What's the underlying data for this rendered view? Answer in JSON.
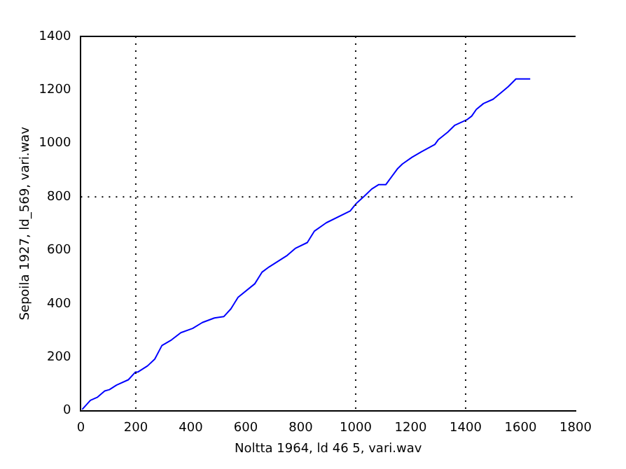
{
  "chart_data": {
    "type": "line",
    "xlabel": "Noltta 1964, ld 46 5, vari.wav",
    "ylabel": "Sepoila 1927, ld_569, vari.wav",
    "x": [
      5,
      35,
      61,
      87,
      104,
      130,
      173,
      199,
      208,
      243,
      269,
      295,
      330,
      364,
      407,
      442,
      486,
      520,
      546,
      572,
      633,
      659,
      685,
      728,
      751,
      780,
      824,
      850,
      893,
      980,
      1001,
      1032,
      1058,
      1084,
      1110,
      1122,
      1153,
      1170,
      1205,
      1240,
      1288,
      1300,
      1335,
      1361,
      1404,
      1422,
      1439,
      1465,
      1500,
      1540,
      1555,
      1583,
      1635
    ],
    "series": [
      {
        "color": "#0000ff",
        "values": [
          5,
          39,
          51,
          74,
          79,
          96,
          116,
          145,
          145,
          168,
          193,
          244,
          265,
          292,
          308,
          330,
          347,
          352,
          381,
          424,
          475,
          518,
          538,
          566,
          581,
          607,
          629,
          672,
          703,
          747,
          774,
          803,
          829,
          846,
          846,
          863,
          906,
          923,
          948,
          969,
          996,
          1013,
          1042,
          1068,
          1088,
          1102,
          1127,
          1149,
          1165,
          1199,
          1212,
          1241,
          1241
        ]
      }
    ],
    "xlim": [
      0,
      1800
    ],
    "xticks": [
      0,
      200,
      400,
      600,
      800,
      1000,
      1200,
      1400,
      1600,
      1800
    ],
    "ylim": [
      0,
      1400
    ],
    "yticks": [
      0,
      200,
      400,
      600,
      800,
      1000,
      1200,
      1400
    ],
    "ref_lines": [
      {
        "axis": "x",
        "value": 200,
        "line_style": "dotted",
        "color": "#000000"
      },
      {
        "axis": "x",
        "value": 1000,
        "line_style": "dotted",
        "color": "#000000"
      },
      {
        "axis": "x",
        "value": 1400,
        "line_style": "dotted",
        "color": "#000000"
      },
      {
        "axis": "y",
        "value": 800,
        "line_style": "dotted",
        "color": "#000000"
      }
    ],
    "line_style": "solid",
    "marker": "none",
    "grid": false,
    "legend": false
  }
}
